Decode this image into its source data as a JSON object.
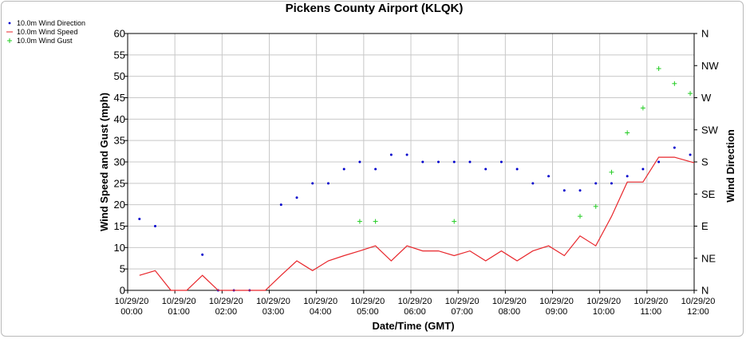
{
  "chart_data": {
    "type": "line",
    "title": "Pickens County Airport (KLQK)",
    "xlabel": "Date/Time (GMT)",
    "ylabel": "Wind Speed and Gust (mph)",
    "y2label": "Wind Direction",
    "xlim": [
      0,
      720
    ],
    "ylim": [
      0,
      60
    ],
    "y2lim": [
      0,
      360
    ],
    "yticks": [
      0,
      5,
      10,
      15,
      20,
      25,
      30,
      35,
      40,
      45,
      50,
      55,
      60
    ],
    "y2ticks": [
      {
        "value": 0,
        "label": "N"
      },
      {
        "value": 45,
        "label": "NE"
      },
      {
        "value": 90,
        "label": "E"
      },
      {
        "value": 135,
        "label": "SE"
      },
      {
        "value": 180,
        "label": "S"
      },
      {
        "value": 225,
        "label": "SW"
      },
      {
        "value": 270,
        "label": "W"
      },
      {
        "value": 315,
        "label": "NW"
      },
      {
        "value": 360,
        "label": "N"
      }
    ],
    "xticks": [
      {
        "value": 0,
        "date": "10/29/20",
        "time": "00:00"
      },
      {
        "value": 60,
        "date": "10/29/20",
        "time": "01:00"
      },
      {
        "value": 120,
        "date": "10/29/20",
        "time": "02:00"
      },
      {
        "value": 180,
        "date": "10/29/20",
        "time": "03:00"
      },
      {
        "value": 240,
        "date": "10/29/20",
        "time": "04:00"
      },
      {
        "value": 300,
        "date": "10/29/20",
        "time": "05:00"
      },
      {
        "value": 360,
        "date": "10/29/20",
        "time": "06:00"
      },
      {
        "value": 420,
        "date": "10/29/20",
        "time": "07:00"
      },
      {
        "value": 480,
        "date": "10/29/20",
        "time": "08:00"
      },
      {
        "value": 540,
        "date": "10/29/20",
        "time": "09:00"
      },
      {
        "value": 600,
        "date": "10/29/20",
        "time": "10:00"
      },
      {
        "value": 660,
        "date": "10/29/20",
        "time": "11:00"
      },
      {
        "value": 720,
        "date": "10/29/20",
        "time": "12:00"
      }
    ],
    "grid": true,
    "legend_position": "top-left",
    "series": [
      {
        "name": "10.0m Wind Direction",
        "style": "dots",
        "color": "#0000cc",
        "axis": "right",
        "x": [
          15,
          35,
          95,
          115,
          135,
          155,
          195,
          215,
          235,
          255,
          275,
          295,
          315,
          335,
          355,
          375,
          395,
          415,
          435,
          455,
          475,
          495,
          515,
          535,
          555,
          575,
          595,
          615,
          635,
          655,
          675,
          695,
          715
        ],
        "y": [
          100,
          90,
          50,
          0,
          0,
          0,
          120,
          130,
          150,
          150,
          170,
          180,
          170,
          190,
          190,
          180,
          180,
          180,
          180,
          170,
          180,
          170,
          150,
          160,
          140,
          140,
          150,
          150,
          160,
          170,
          180,
          200,
          190
        ]
      },
      {
        "name": "10.0m Wind Speed",
        "style": "line",
        "color": "#e8262b",
        "axis": "left",
        "x": [
          15,
          35,
          55,
          75,
          95,
          115,
          135,
          155,
          175,
          195,
          215,
          235,
          255,
          275,
          295,
          315,
          335,
          355,
          375,
          395,
          415,
          435,
          455,
          475,
          495,
          515,
          535,
          555,
          575,
          595,
          615,
          635,
          655,
          675,
          695,
          720
        ],
        "y": [
          3.5,
          4.6,
          0,
          0,
          3.5,
          0,
          0,
          0,
          0,
          3.5,
          6.9,
          4.6,
          6.9,
          8.1,
          9.2,
          10.4,
          6.9,
          10.4,
          9.2,
          9.2,
          8.1,
          9.2,
          6.9,
          9.2,
          6.9,
          9.2,
          10.4,
          8.1,
          12.7,
          10.4,
          17.3,
          25.3,
          25.3,
          31.1,
          31.1,
          29.8
        ]
      },
      {
        "name": "10.0m Wind Gust",
        "style": "plus",
        "color": "#22cc22",
        "axis": "left",
        "x": [
          295,
          315,
          415,
          575,
          595,
          615,
          635,
          655,
          675,
          695,
          715
        ],
        "y": [
          16.1,
          16.1,
          16.1,
          17.3,
          19.6,
          27.6,
          36.8,
          42.6,
          51.8,
          48.3,
          46.0
        ]
      }
    ]
  }
}
